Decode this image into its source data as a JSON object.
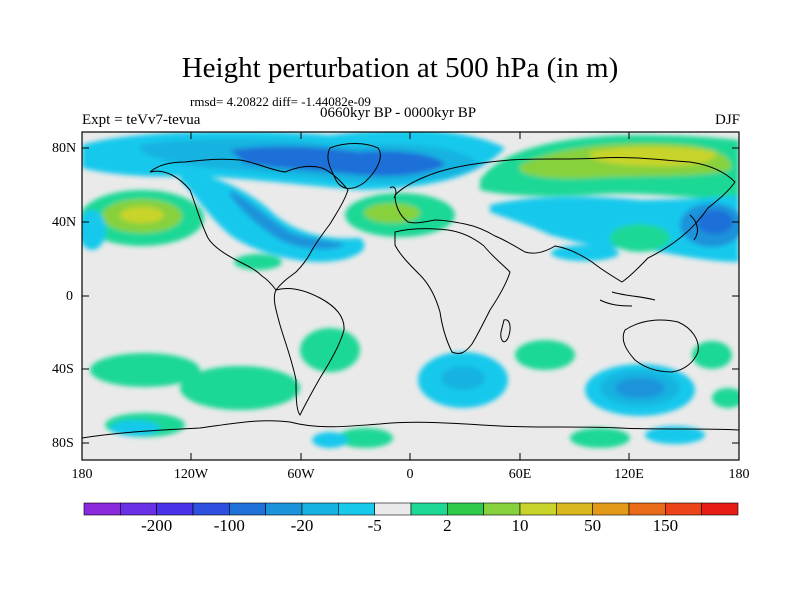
{
  "header": {
    "title": "Height perturbation at 500 hPa (in m)",
    "stats": "rmsd= 4.20822 diff= -1.44082e-09",
    "experiment": "Expt = teVv7-tevua",
    "period": "0660kyr BP - 0000kyr BP",
    "season": "DJF"
  },
  "axes": {
    "lat_labels": [
      "80N",
      "40N",
      "0",
      "40S",
      "80S"
    ],
    "lon_labels": [
      "180",
      "120W",
      "60W",
      "0",
      "60E",
      "120E",
      "180"
    ]
  },
  "colorbar": {
    "colors": [
      "#8a28dc",
      "#6a30e6",
      "#4a32e8",
      "#2f4fe0",
      "#1f70d8",
      "#1a93da",
      "#17b3e0",
      "#18c9ec",
      "#eaeaea",
      "#1ed895",
      "#2dca4c",
      "#87d13c",
      "#c9d42a",
      "#d9b81e",
      "#e39a19",
      "#ea6b18",
      "#ec4418",
      "#e81c17"
    ],
    "labels": [
      "-200",
      "-100",
      "-20",
      "-5",
      "2",
      "10",
      "50",
      "150"
    ]
  }
}
